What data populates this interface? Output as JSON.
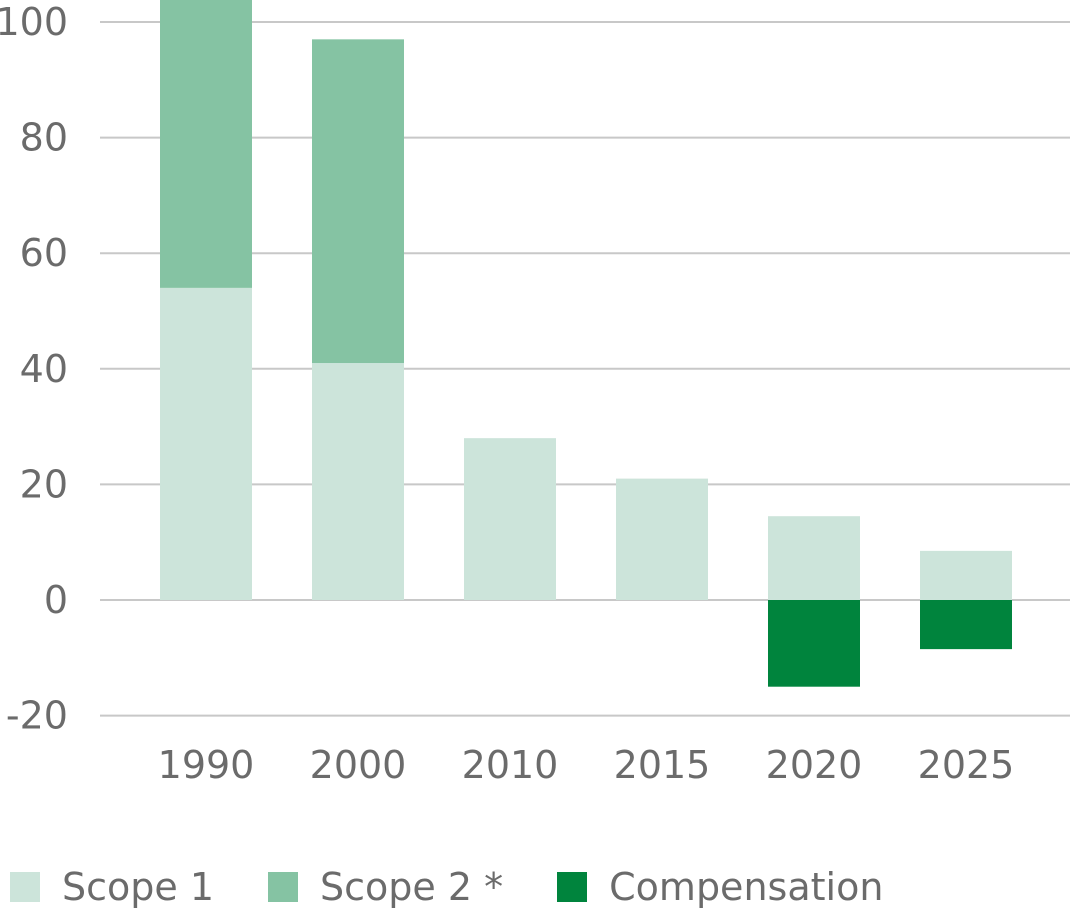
{
  "chart_data": {
    "type": "bar",
    "stacked": true,
    "categories": [
      "1990",
      "2000",
      "2010",
      "2015",
      "2020",
      "2025"
    ],
    "series": [
      {
        "name": "Scope 1",
        "color": "#cce4da",
        "values": [
          54,
          41,
          28,
          21,
          14.5,
          8.5
        ]
      },
      {
        "name": "Scope 2 *",
        "color": "#85c3a3",
        "values": [
          51,
          56,
          0,
          0,
          0,
          0
        ]
      },
      {
        "name": "Compensation",
        "color": "#00843d",
        "values": [
          0,
          0,
          0,
          0,
          -15,
          -8.5
        ]
      }
    ],
    "y_ticks": [
      "-20",
      "0",
      "20",
      "40",
      "60",
      "80",
      "100"
    ],
    "ylim": [
      -20,
      100
    ],
    "grid": true,
    "legend_position": "bottom-left"
  }
}
